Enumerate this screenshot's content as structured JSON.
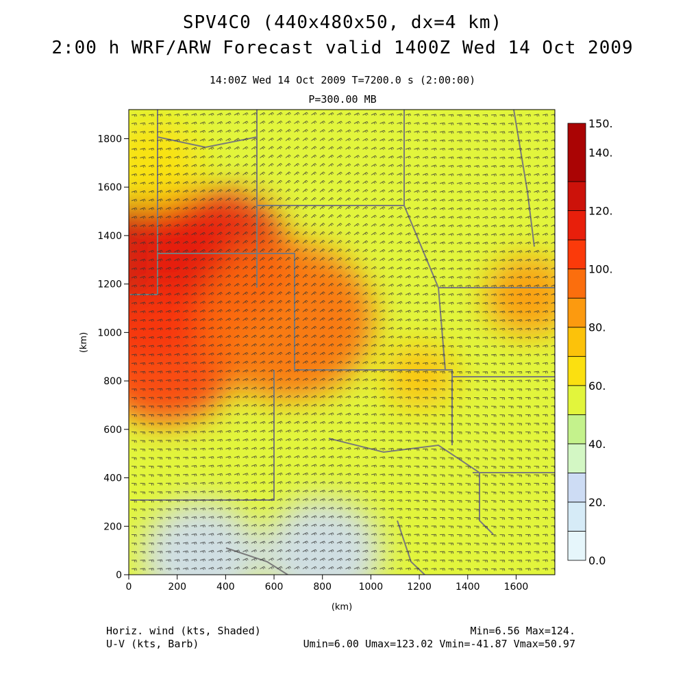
{
  "header": {
    "title_line1": "SPV4C0 (440x480x50, dx=4 km)",
    "title_line2": "2:00 h WRF/ARW Forecast valid 1400Z Wed 14 Oct 2009",
    "subtitle_time": "14:00Z Wed 14 Oct 2009     T=7200.0 s (2:00:00)",
    "subtitle_level": "P=300.00 MB"
  },
  "footer": {
    "field1": "Horiz. wind (kts, Shaded)",
    "field2": "U-V (kts, Barb)",
    "stats1": "Min=6.56 Max=124.",
    "stats2": "Umin=6.00 Umax=123.02 Vmin=-41.87 Vmax=50.97"
  },
  "colors": {
    "scale": [
      "#e6f6fb",
      "#d6ebf7",
      "#cddcf4",
      "#d3f7c4",
      "#c4f28c",
      "#e2f53c",
      "#fbe010",
      "#fcc20a",
      "#fc9a0f",
      "#fb6e0d",
      "#fb3a0a",
      "#e81f0b",
      "#cc120a",
      "#aa0404"
    ]
  },
  "chart_data": {
    "type": "heatmap",
    "xlabel": "(km)",
    "ylabel": "(km)",
    "xlim": [
      0,
      1760
    ],
    "ylim": [
      0,
      1920
    ],
    "x_ticks": [
      0,
      200,
      400,
      600,
      800,
      1000,
      1200,
      1400,
      1600
    ],
    "y_ticks": [
      0,
      200,
      400,
      600,
      800,
      1000,
      1200,
      1400,
      1600,
      1800
    ],
    "colorbar_labels": [
      "150.",
      "140.",
      "120.",
      "100.",
      "80.",
      "60.",
      "40.",
      "20.",
      "0.0"
    ],
    "colorbar_levels": [
      0,
      10,
      20,
      30,
      40,
      50,
      60,
      70,
      80,
      90,
      100,
      110,
      120,
      130,
      140
    ],
    "wind_speed_blobs_kts": [
      {
        "x": 80,
        "y": 1230,
        "value": 124,
        "radius_km": 360
      },
      {
        "x": 350,
        "y": 1300,
        "value": 110,
        "radius_km": 320
      },
      {
        "x": 150,
        "y": 900,
        "value": 100,
        "radius_km": 300
      },
      {
        "x": 650,
        "y": 1050,
        "value": 90,
        "radius_km": 360
      },
      {
        "x": 1650,
        "y": 1150,
        "value": 82,
        "radius_km": 180
      },
      {
        "x": 1200,
        "y": 820,
        "value": 70,
        "radius_km": 150
      },
      {
        "x": 300,
        "y": 80,
        "value": 25,
        "radius_km": 250
      },
      {
        "x": 800,
        "y": 90,
        "value": 25,
        "radius_km": 250
      },
      {
        "x": 100,
        "y": 1700,
        "value": 62,
        "radius_km": 200
      }
    ],
    "background_speed_kts": 55,
    "barb_field": "U-V barbs over full domain"
  }
}
